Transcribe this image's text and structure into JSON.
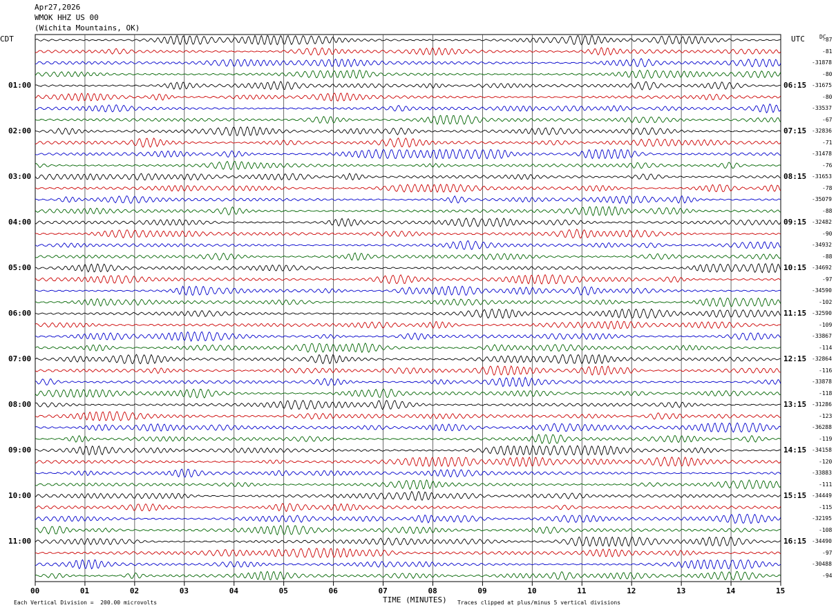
{
  "header": {
    "date": "Apr27,2026",
    "station": "WMOK HHZ US 00",
    "location": "(Wichita Mountains, OK)"
  },
  "left_label": "CDT",
  "right_label": "UTC",
  "dc_label": "DC",
  "footer": {
    "xlabel": "TIME (MINUTES)",
    "scale": "Each Vertical Division =  200.00 microvolts",
    "clip": "Traces clipped at plus/minus 5 vertical divisions"
  },
  "colors": {
    "black": "#000000",
    "red": "#cc0000",
    "blue": "#0000cc",
    "green": "#006400",
    "grid": "#000000"
  },
  "chart_data": {
    "type": "line",
    "title": "WMOK HHZ US 00",
    "xlabel": "TIME (MINUTES)",
    "xlim": [
      0,
      15
    ],
    "x_ticks": [
      "00",
      "01",
      "02",
      "03",
      "04",
      "05",
      "06",
      "07",
      "08",
      "09",
      "10",
      "11",
      "12",
      "13",
      "14",
      "15"
    ],
    "cdt_hour_labels": [
      "01:00",
      "02:00",
      "03:00",
      "04:00",
      "05:00",
      "06:00",
      "07:00",
      "08:00",
      "09:00",
      "10:00",
      "11:00"
    ],
    "utc_hour_labels": [
      "06:15",
      "07:15",
      "08:15",
      "09:15",
      "10:15",
      "11:15",
      "12:15",
      "13:15",
      "14:15",
      "15:15",
      "16:15"
    ],
    "trace_color_cycle": [
      "black",
      "red",
      "blue",
      "green"
    ],
    "trace_count": 48,
    "dc_offsets": [
      "-87",
      "-81",
      "-31878",
      "-80",
      "-31675",
      "-80",
      "-33537",
      "-67",
      "-32836",
      "-71",
      "-31478",
      "-76",
      "-31653",
      "-78",
      "-35079",
      "-88",
      "-32482",
      "-90",
      "-34932",
      "-88",
      "-34692",
      "-97",
      "-34590",
      "-102",
      "-32590",
      "-109",
      "-33867",
      "-114",
      "-32864",
      "-116",
      "-33878",
      "-118",
      "-31286",
      "-123",
      "-36288",
      "-119",
      "-34158",
      "-120",
      "-33883",
      "-111",
      "-34449",
      "-115",
      "-32195",
      "-108",
      "-34490",
      "-97",
      "-30488",
      "-94"
    ]
  }
}
